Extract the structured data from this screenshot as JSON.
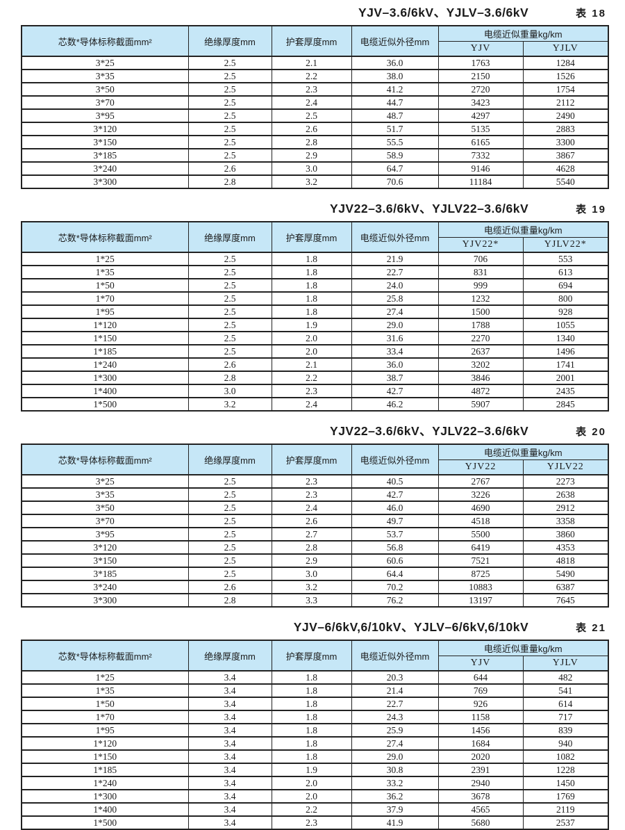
{
  "colors": {
    "header_bg": "#c6e7f7",
    "border": "#222222",
    "text": "#1b1b1b",
    "page_bg": "#ffffff"
  },
  "tables": [
    {
      "title": "YJV–3.6/6kV、YJLV–3.6/6kV",
      "table_no": "表 18",
      "headers": [
        "芯数*导体标称截面mm²",
        "绝缘厚度mm",
        "护套厚度mm",
        "电缆近似外径mm"
      ],
      "weight_header": "电缆近似重量kg/km",
      "weight_sub": [
        "YJV",
        "YJLV"
      ],
      "rows": [
        [
          "3*25",
          "2.5",
          "2.1",
          "36.0",
          "1763",
          "1284"
        ],
        [
          "3*35",
          "2.5",
          "2.2",
          "38.0",
          "2150",
          "1526"
        ],
        [
          "3*50",
          "2.5",
          "2.3",
          "41.2",
          "2720",
          "1754"
        ],
        [
          "3*70",
          "2.5",
          "2.4",
          "44.7",
          "3423",
          "2112"
        ],
        [
          "3*95",
          "2.5",
          "2.5",
          "48.7",
          "4297",
          "2490"
        ],
        [
          "3*120",
          "2.5",
          "2.6",
          "51.7",
          "5135",
          "2883"
        ],
        [
          "3*150",
          "2.5",
          "2.8",
          "55.5",
          "6165",
          "3300"
        ],
        [
          "3*185",
          "2.5",
          "2.9",
          "58.9",
          "7332",
          "3867"
        ],
        [
          "3*240",
          "2.6",
          "3.0",
          "64.7",
          "9146",
          "4628"
        ],
        [
          "3*300",
          "2.8",
          "3.2",
          "70.6",
          "11184",
          "5540"
        ]
      ]
    },
    {
      "title": "YJV22–3.6/6kV、YJLV22–3.6/6kV",
      "table_no": "表 19",
      "headers": [
        "芯数*导体标称截面mm²",
        "绝缘厚度mm",
        "护套厚度mm",
        "电缆近似外径mm"
      ],
      "weight_header": "电缆近似重量kg/km",
      "weight_sub": [
        "YJV22*",
        "YJLV22*"
      ],
      "rows": [
        [
          "1*25",
          "2.5",
          "1.8",
          "21.9",
          "706",
          "553"
        ],
        [
          "1*35",
          "2.5",
          "1.8",
          "22.7",
          "831",
          "613"
        ],
        [
          "1*50",
          "2.5",
          "1.8",
          "24.0",
          "999",
          "694"
        ],
        [
          "1*70",
          "2.5",
          "1.8",
          "25.8",
          "1232",
          "800"
        ],
        [
          "1*95",
          "2.5",
          "1.8",
          "27.4",
          "1500",
          "928"
        ],
        [
          "1*120",
          "2.5",
          "1.9",
          "29.0",
          "1788",
          "1055"
        ],
        [
          "1*150",
          "2.5",
          "2.0",
          "31.6",
          "2270",
          "1340"
        ],
        [
          "1*185",
          "2.5",
          "2.0",
          "33.4",
          "2637",
          "1496"
        ],
        [
          "1*240",
          "2.6",
          "2.1",
          "36.0",
          "3202",
          "1741"
        ],
        [
          "1*300",
          "2.8",
          "2.2",
          "38.7",
          "3846",
          "2001"
        ],
        [
          "1*400",
          "3.0",
          "2.3",
          "42.7",
          "4872",
          "2435"
        ],
        [
          "1*500",
          "3.2",
          "2.4",
          "46.2",
          "5907",
          "2845"
        ]
      ]
    },
    {
      "title": "YJV22–3.6/6kV、YJLV22–3.6/6kV",
      "table_no": "表 20",
      "headers": [
        "芯数*导体标称截面mm²",
        "绝缘厚度mm",
        "护套厚度mm",
        "电缆近似外径mm"
      ],
      "weight_header": "电缆近似重量kg/km",
      "weight_sub": [
        "YJV22",
        "YJLV22"
      ],
      "rows": [
        [
          "3*25",
          "2.5",
          "2.3",
          "40.5",
          "2767",
          "2273"
        ],
        [
          "3*35",
          "2.5",
          "2.3",
          "42.7",
          "3226",
          "2638"
        ],
        [
          "3*50",
          "2.5",
          "2.4",
          "46.0",
          "4690",
          "2912"
        ],
        [
          "3*70",
          "2.5",
          "2.6",
          "49.7",
          "4518",
          "3358"
        ],
        [
          "3*95",
          "2.5",
          "2.7",
          "53.7",
          "5500",
          "3860"
        ],
        [
          "3*120",
          "2.5",
          "2.8",
          "56.8",
          "6419",
          "4353"
        ],
        [
          "3*150",
          "2.5",
          "2.9",
          "60.6",
          "7521",
          "4818"
        ],
        [
          "3*185",
          "2.5",
          "3.0",
          "64.4",
          "8725",
          "5490"
        ],
        [
          "3*240",
          "2.6",
          "3.2",
          "70.2",
          "10883",
          "6387"
        ],
        [
          "3*300",
          "2.8",
          "3.3",
          "76.2",
          "13197",
          "7645"
        ]
      ]
    },
    {
      "title": "YJV–6/6kV,6/10kV、YJLV–6/6kV,6/10kV",
      "table_no": "表 21",
      "headers": [
        "芯数*导体标称截面mm²",
        "绝缘厚度mm",
        "护套厚度mm",
        "电缆近似外径mm"
      ],
      "weight_header": "电缆近似重量kg/km",
      "weight_sub": [
        "YJV",
        "YJLV"
      ],
      "rows": [
        [
          "1*25",
          "3.4",
          "1.8",
          "20.3",
          "644",
          "482"
        ],
        [
          "1*35",
          "3.4",
          "1.8",
          "21.4",
          "769",
          "541"
        ],
        [
          "1*50",
          "3.4",
          "1.8",
          "22.7",
          "926",
          "614"
        ],
        [
          "1*70",
          "3.4",
          "1.8",
          "24.3",
          "1158",
          "717"
        ],
        [
          "1*95",
          "3.4",
          "1.8",
          "25.9",
          "1456",
          "839"
        ],
        [
          "1*120",
          "3.4",
          "1.8",
          "27.4",
          "1684",
          "940"
        ],
        [
          "1*150",
          "3.4",
          "1.8",
          "29.0",
          "2020",
          "1082"
        ],
        [
          "1*185",
          "3.4",
          "1.9",
          "30.8",
          "2391",
          "1228"
        ],
        [
          "1*240",
          "3.4",
          "2.0",
          "33.2",
          "2940",
          "1450"
        ],
        [
          "1*300",
          "3.4",
          "2.0",
          "36.2",
          "3678",
          "1769"
        ],
        [
          "1*400",
          "3.4",
          "2.2",
          "37.9",
          "4565",
          "2119"
        ],
        [
          "1*500",
          "3.4",
          "2.3",
          "41.9",
          "5680",
          "2537"
        ]
      ]
    }
  ]
}
